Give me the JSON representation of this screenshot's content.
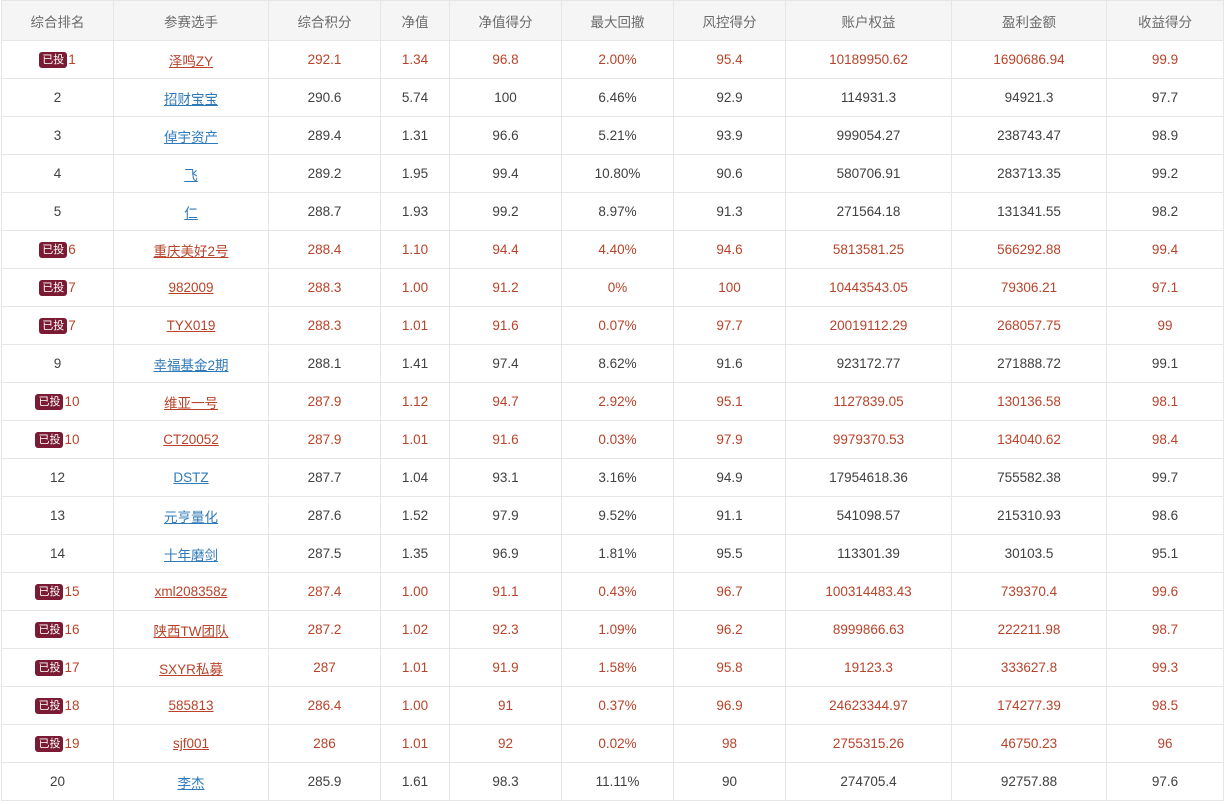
{
  "headers": [
    "综合排名",
    "参赛选手",
    "综合积分",
    "净值",
    "净值得分",
    "最大回撤",
    "风控得分",
    "账户权益",
    "盈利金额",
    "收益得分"
  ],
  "badge_label": "已投",
  "rows": [
    {
      "rank": "1",
      "invested": true,
      "name": "泽鸣ZY",
      "score": "292.1",
      "nav": "1.34",
      "nav_score": "96.8",
      "drawdown": "2.00%",
      "risk_score": "95.4",
      "equity": "10189950.62",
      "profit": "1690686.94",
      "return_score": "99.9"
    },
    {
      "rank": "2",
      "invested": false,
      "name": "招财宝宝",
      "score": "290.6",
      "nav": "5.74",
      "nav_score": "100",
      "drawdown": "6.46%",
      "risk_score": "92.9",
      "equity": "114931.3",
      "profit": "94921.3",
      "return_score": "97.7"
    },
    {
      "rank": "3",
      "invested": false,
      "name": "倬宇资产",
      "score": "289.4",
      "nav": "1.31",
      "nav_score": "96.6",
      "drawdown": "5.21%",
      "risk_score": "93.9",
      "equity": "999054.27",
      "profit": "238743.47",
      "return_score": "98.9"
    },
    {
      "rank": "4",
      "invested": false,
      "name": "飞",
      "score": "289.2",
      "nav": "1.95",
      "nav_score": "99.4",
      "drawdown": "10.80%",
      "risk_score": "90.6",
      "equity": "580706.91",
      "profit": "283713.35",
      "return_score": "99.2"
    },
    {
      "rank": "5",
      "invested": false,
      "name": "仁",
      "score": "288.7",
      "nav": "1.93",
      "nav_score": "99.2",
      "drawdown": "8.97%",
      "risk_score": "91.3",
      "equity": "271564.18",
      "profit": "131341.55",
      "return_score": "98.2"
    },
    {
      "rank": "6",
      "invested": true,
      "name": "重庆美好2号",
      "score": "288.4",
      "nav": "1.10",
      "nav_score": "94.4",
      "drawdown": "4.40%",
      "risk_score": "94.6",
      "equity": "5813581.25",
      "profit": "566292.88",
      "return_score": "99.4"
    },
    {
      "rank": "7",
      "invested": true,
      "name": "982009",
      "score": "288.3",
      "nav": "1.00",
      "nav_score": "91.2",
      "drawdown": "0%",
      "risk_score": "100",
      "equity": "10443543.05",
      "profit": "79306.21",
      "return_score": "97.1"
    },
    {
      "rank": "7",
      "invested": true,
      "name": "TYX019",
      "score": "288.3",
      "nav": "1.01",
      "nav_score": "91.6",
      "drawdown": "0.07%",
      "risk_score": "97.7",
      "equity": "20019112.29",
      "profit": "268057.75",
      "return_score": "99"
    },
    {
      "rank": "9",
      "invested": false,
      "name": "幸福基金2期",
      "score": "288.1",
      "nav": "1.41",
      "nav_score": "97.4",
      "drawdown": "8.62%",
      "risk_score": "91.6",
      "equity": "923172.77",
      "profit": "271888.72",
      "return_score": "99.1"
    },
    {
      "rank": "10",
      "invested": true,
      "name": "维亚一号",
      "score": "287.9",
      "nav": "1.12",
      "nav_score": "94.7",
      "drawdown": "2.92%",
      "risk_score": "95.1",
      "equity": "1127839.05",
      "profit": "130136.58",
      "return_score": "98.1"
    },
    {
      "rank": "10",
      "invested": true,
      "name": "CT20052",
      "score": "287.9",
      "nav": "1.01",
      "nav_score": "91.6",
      "drawdown": "0.03%",
      "risk_score": "97.9",
      "equity": "9979370.53",
      "profit": "134040.62",
      "return_score": "98.4"
    },
    {
      "rank": "12",
      "invested": false,
      "name": "DSTZ",
      "score": "287.7",
      "nav": "1.04",
      "nav_score": "93.1",
      "drawdown": "3.16%",
      "risk_score": "94.9",
      "equity": "17954618.36",
      "profit": "755582.38",
      "return_score": "99.7"
    },
    {
      "rank": "13",
      "invested": false,
      "name": "元亨量化",
      "score": "287.6",
      "nav": "1.52",
      "nav_score": "97.9",
      "drawdown": "9.52%",
      "risk_score": "91.1",
      "equity": "541098.57",
      "profit": "215310.93",
      "return_score": "98.6"
    },
    {
      "rank": "14",
      "invested": false,
      "name": "十年磨剑",
      "score": "287.5",
      "nav": "1.35",
      "nav_score": "96.9",
      "drawdown": "1.81%",
      "risk_score": "95.5",
      "equity": "113301.39",
      "profit": "30103.5",
      "return_score": "95.1"
    },
    {
      "rank": "15",
      "invested": true,
      "name": "xml208358z",
      "score": "287.4",
      "nav": "1.00",
      "nav_score": "91.1",
      "drawdown": "0.43%",
      "risk_score": "96.7",
      "equity": "100314483.43",
      "profit": "739370.4",
      "return_score": "99.6"
    },
    {
      "rank": "16",
      "invested": true,
      "name": "陕西TW团队",
      "score": "287.2",
      "nav": "1.02",
      "nav_score": "92.3",
      "drawdown": "1.09%",
      "risk_score": "96.2",
      "equity": "8999866.63",
      "profit": "222211.98",
      "return_score": "98.7"
    },
    {
      "rank": "17",
      "invested": true,
      "name": "SXYR私募",
      "score": "287",
      "nav": "1.01",
      "nav_score": "91.9",
      "drawdown": "1.58%",
      "risk_score": "95.8",
      "equity": "19123.3",
      "profit": "333627.8",
      "return_score": "99.3"
    },
    {
      "rank": "18",
      "invested": true,
      "name": "585813",
      "score": "286.4",
      "nav": "1.00",
      "nav_score": "91",
      "drawdown": "0.37%",
      "risk_score": "96.9",
      "equity": "24623344.97",
      "profit": "174277.39",
      "return_score": "98.5"
    },
    {
      "rank": "19",
      "invested": true,
      "name": "sjf001",
      "score": "286",
      "nav": "1.01",
      "nav_score": "92",
      "drawdown": "0.02%",
      "risk_score": "98",
      "equity": "2755315.26",
      "profit": "46750.23",
      "return_score": "96"
    },
    {
      "rank": "20",
      "invested": false,
      "name": "李杰",
      "score": "285.9",
      "nav": "1.61",
      "nav_score": "98.3",
      "drawdown": "11.11%",
      "risk_score": "90",
      "equity": "274705.4",
      "profit": "92757.88",
      "return_score": "97.6"
    }
  ],
  "colors": {
    "header_bg": "#f5f5f5",
    "border": "#e6e6e6",
    "badge_bg": "#7b1b33",
    "invested_text": "#b8432a",
    "link": "#2f7ab8",
    "normal_text": "#404040"
  }
}
